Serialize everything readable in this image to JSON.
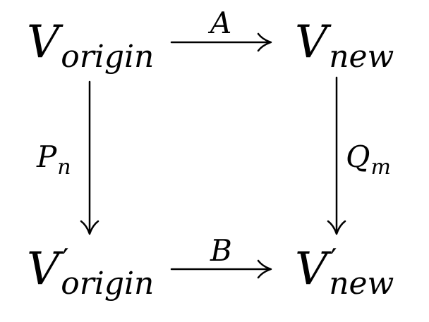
{
  "diagram": {
    "type": "commutative-diagram",
    "nodes": {
      "top_left": {
        "symbol": "V",
        "subscript": "origin",
        "prime": ""
      },
      "top_right": {
        "symbol": "V",
        "subscript": "new",
        "prime": ""
      },
      "bottom_left": {
        "symbol": "V",
        "subscript": "origin",
        "prime": "′"
      },
      "bottom_right": {
        "symbol": "V",
        "subscript": "new",
        "prime": "′"
      }
    },
    "arrows": {
      "top": {
        "label": "A",
        "label_sub": "",
        "from": "top_left",
        "to": "top_right"
      },
      "bottom": {
        "label": "B",
        "label_sub": "",
        "from": "bottom_left",
        "to": "bottom_right"
      },
      "left": {
        "label": "P",
        "label_sub": "n",
        "from": "top_left",
        "to": "bottom_left"
      },
      "right": {
        "label": "Q",
        "label_sub": "m",
        "from": "top_right",
        "to": "bottom_right"
      }
    },
    "colors": {
      "ink": "#000000",
      "background": "#ffffff"
    }
  }
}
